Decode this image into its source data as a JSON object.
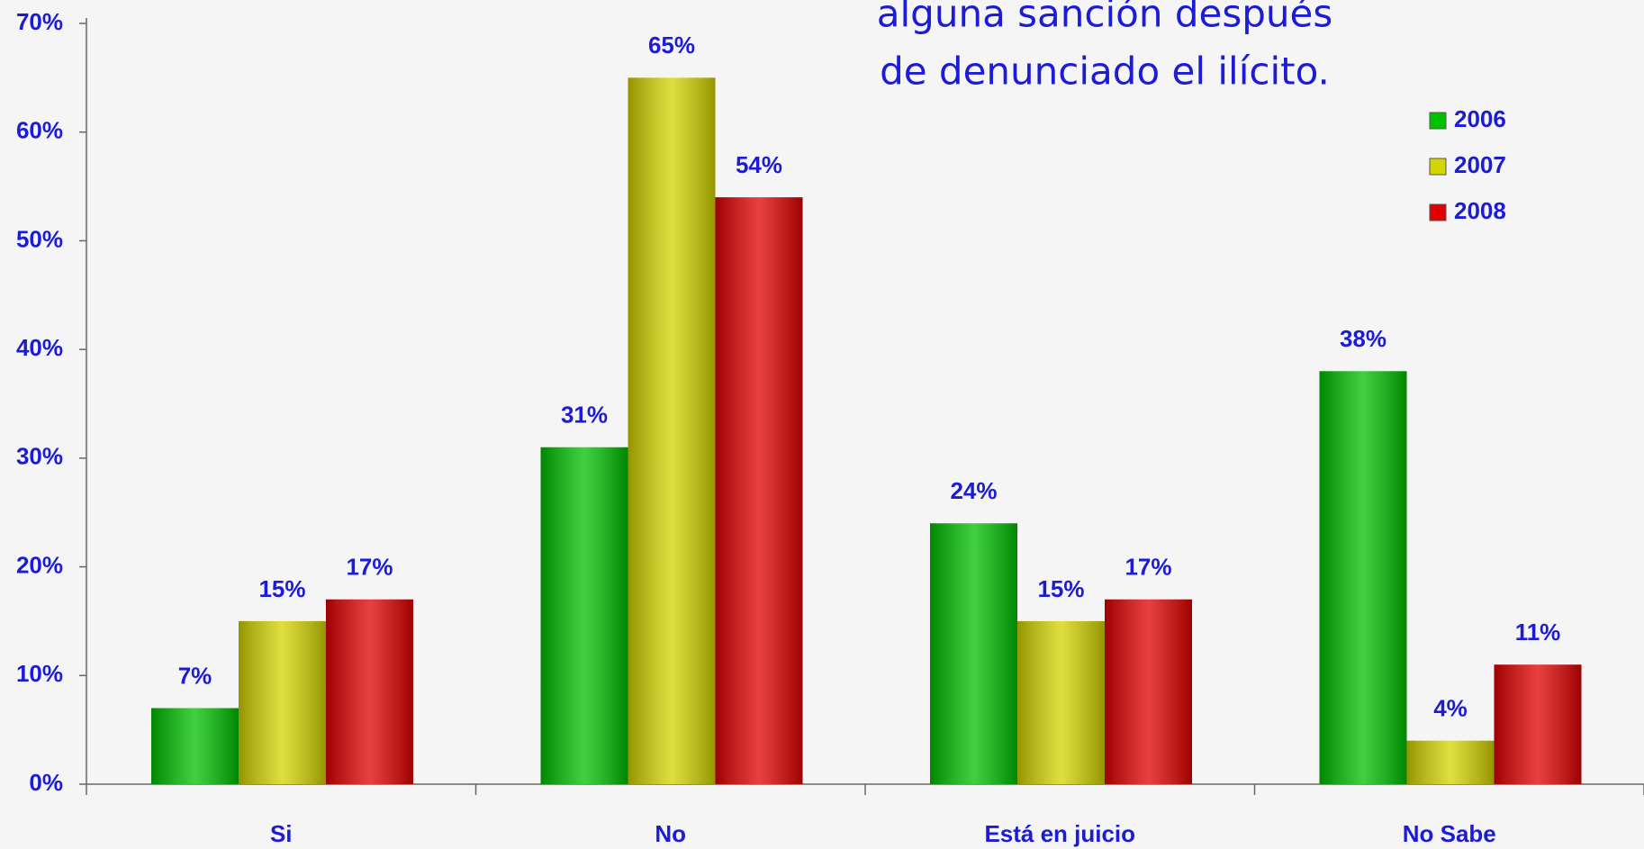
{
  "chart_data": {
    "type": "bar",
    "title": [
      "alguna sanción después",
      "de denunciado el ilícito."
    ],
    "categories": [
      "Si",
      "No",
      "Está en juicio",
      "No Sabe"
    ],
    "series": [
      {
        "name": "2006",
        "color": "#00c000",
        "values": [
          7,
          31,
          24,
          38
        ],
        "value_labels": [
          "7%",
          "31%",
          "24%",
          "38%"
        ]
      },
      {
        "name": "2007",
        "color": "#d4d400",
        "values": [
          15,
          65,
          15,
          4
        ],
        "value_labels": [
          "15%",
          "65%",
          "15%",
          "4%"
        ]
      },
      {
        "name": "2008",
        "color": "#e00000",
        "values": [
          17,
          54,
          17,
          11
        ],
        "value_labels": [
          "17%",
          "54%",
          "17%",
          "11%"
        ]
      }
    ],
    "ylim": [
      0,
      70
    ],
    "yticks": [
      {
        "value": 0,
        "label": "0%"
      },
      {
        "value": 10,
        "label": "10%"
      },
      {
        "value": 20,
        "label": "20%"
      },
      {
        "value": 30,
        "label": "30%"
      },
      {
        "value": 40,
        "label": "40%"
      },
      {
        "value": 50,
        "label": "50%"
      },
      {
        "value": 60,
        "label": "60%"
      },
      {
        "value": 70,
        "label": "70%"
      }
    ],
    "legend": "upper right"
  }
}
